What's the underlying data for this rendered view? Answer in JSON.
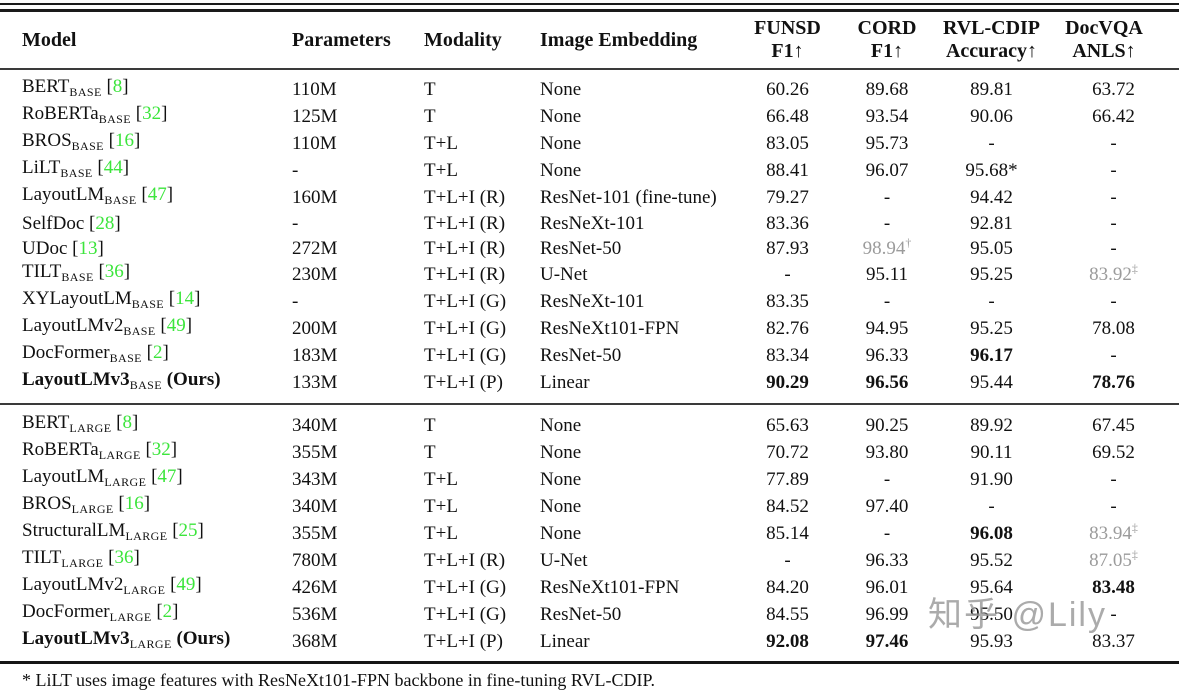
{
  "accent_colors": {
    "citation_green": "#3ce53c",
    "muted_gray": "#9b9b9b"
  },
  "watermark": {
    "text": "知乎 @Lily"
  },
  "table": {
    "headers": [
      {
        "l1": "Model",
        "l2": "",
        "align": "left"
      },
      {
        "l1": "Parameters",
        "l2": "",
        "align": "left"
      },
      {
        "l1": "Modality",
        "l2": "",
        "align": "left"
      },
      {
        "l1": "Image Embedding",
        "l2": "",
        "align": "left"
      },
      {
        "l1": "FUNSD",
        "l2": "F1↑",
        "align": "center"
      },
      {
        "l1": "CORD",
        "l2": "F1↑",
        "align": "center"
      },
      {
        "l1": "RVL-CDIP",
        "l2": "Accuracy↑",
        "align": "center"
      },
      {
        "l1": "DocVQA",
        "l2": "ANLS↑",
        "align": "center"
      }
    ],
    "sections": [
      {
        "rows": [
          {
            "model": {
              "name": "BERT",
              "sub": "BASE",
              "cite": "8",
              "bold": false,
              "suffix": ""
            },
            "params": "110M",
            "modality": "T",
            "embedding": "None",
            "metrics": [
              {
                "v": "60.26"
              },
              {
                "v": "89.68"
              },
              {
                "v": "89.81"
              },
              {
                "v": "63.72"
              }
            ]
          },
          {
            "model": {
              "name": "RoBERTa",
              "sub": "BASE",
              "cite": "32",
              "bold": false,
              "suffix": ""
            },
            "params": "125M",
            "modality": "T",
            "embedding": "None",
            "metrics": [
              {
                "v": "66.48"
              },
              {
                "v": "93.54"
              },
              {
                "v": "90.06"
              },
              {
                "v": "66.42"
              }
            ]
          },
          {
            "model": {
              "name": "BROS",
              "sub": "BASE",
              "cite": "16",
              "bold": false,
              "suffix": ""
            },
            "params": "110M",
            "modality": "T+L",
            "embedding": "None",
            "metrics": [
              {
                "v": "83.05"
              },
              {
                "v": "95.73"
              },
              {
                "v": "-"
              },
              {
                "v": "-"
              }
            ]
          },
          {
            "model": {
              "name": "LiLT",
              "sub": "BASE",
              "cite": "44",
              "bold": false,
              "suffix": ""
            },
            "params": "-",
            "modality": "T+L",
            "embedding": "None",
            "metrics": [
              {
                "v": "88.41"
              },
              {
                "v": "96.07"
              },
              {
                "v": "95.68*"
              },
              {
                "v": "-"
              }
            ]
          },
          {
            "model": {
              "name": "LayoutLM",
              "sub": "BASE",
              "cite": "47",
              "bold": false,
              "suffix": ""
            },
            "params": "160M",
            "modality": "T+L+I (R)",
            "embedding": "ResNet-101 (fine-tune)",
            "metrics": [
              {
                "v": "79.27"
              },
              {
                "v": "-"
              },
              {
                "v": "94.42"
              },
              {
                "v": "-"
              }
            ]
          },
          {
            "model": {
              "name": "SelfDoc",
              "sub": "",
              "cite": "28",
              "bold": false,
              "suffix": ""
            },
            "params": "-",
            "modality": "T+L+I (R)",
            "embedding": "ResNeXt-101",
            "metrics": [
              {
                "v": "83.36"
              },
              {
                "v": "-"
              },
              {
                "v": "92.81"
              },
              {
                "v": "-"
              }
            ]
          },
          {
            "model": {
              "name": "UDoc",
              "sub": "",
              "cite": "13",
              "bold": false,
              "suffix": ""
            },
            "params": "272M",
            "modality": "T+L+I (R)",
            "embedding": "ResNet-50",
            "metrics": [
              {
                "v": "87.93"
              },
              {
                "v": "98.94",
                "g": true,
                "sup": "†"
              },
              {
                "v": "95.05"
              },
              {
                "v": "-"
              }
            ]
          },
          {
            "model": {
              "name": "TILT",
              "sub": "BASE",
              "cite": "36",
              "bold": false,
              "suffix": ""
            },
            "params": "230M",
            "modality": "T+L+I (R)",
            "embedding": "U-Net",
            "metrics": [
              {
                "v": "-"
              },
              {
                "v": "95.11"
              },
              {
                "v": "95.25"
              },
              {
                "v": "83.92",
                "g": true,
                "sup": "‡"
              }
            ]
          },
          {
            "model": {
              "name": "XYLayoutLM",
              "sub": "BASE",
              "cite": "14",
              "bold": false,
              "suffix": ""
            },
            "params": "-",
            "modality": "T+L+I (G)",
            "embedding": "ResNeXt-101",
            "metrics": [
              {
                "v": "83.35"
              },
              {
                "v": "-"
              },
              {
                "v": "-"
              },
              {
                "v": "-"
              }
            ]
          },
          {
            "model": {
              "name": "LayoutLMv2",
              "sub": "BASE",
              "cite": "49",
              "bold": false,
              "suffix": ""
            },
            "params": "200M",
            "modality": "T+L+I (G)",
            "embedding": "ResNeXt101-FPN",
            "metrics": [
              {
                "v": "82.76"
              },
              {
                "v": "94.95"
              },
              {
                "v": "95.25"
              },
              {
                "v": "78.08"
              }
            ]
          },
          {
            "model": {
              "name": "DocFormer",
              "sub": "BASE",
              "cite": "2",
              "bold": false,
              "suffix": ""
            },
            "params": "183M",
            "modality": "T+L+I (G)",
            "embedding": "ResNet-50",
            "metrics": [
              {
                "v": "83.34"
              },
              {
                "v": "96.33"
              },
              {
                "v": "96.17",
                "b": true
              },
              {
                "v": "-"
              }
            ]
          },
          {
            "model": {
              "name": "LayoutLMv3",
              "sub": "BASE",
              "cite": "",
              "bold": true,
              "suffix": " (Ours)"
            },
            "params": "133M",
            "modality": "T+L+I (P)",
            "embedding": "Linear",
            "metrics": [
              {
                "v": "90.29",
                "b": true
              },
              {
                "v": "96.56",
                "b": true
              },
              {
                "v": "95.44"
              },
              {
                "v": "78.76",
                "b": true
              }
            ]
          }
        ]
      },
      {
        "rows": [
          {
            "model": {
              "name": "BERT",
              "sub": "LARGE",
              "cite": "8",
              "bold": false,
              "suffix": ""
            },
            "params": "340M",
            "modality": "T",
            "embedding": "None",
            "metrics": [
              {
                "v": "65.63"
              },
              {
                "v": "90.25"
              },
              {
                "v": "89.92"
              },
              {
                "v": "67.45"
              }
            ]
          },
          {
            "model": {
              "name": "RoBERTa",
              "sub": "LARGE",
              "cite": "32",
              "bold": false,
              "suffix": ""
            },
            "params": "355M",
            "modality": "T",
            "embedding": "None",
            "metrics": [
              {
                "v": "70.72"
              },
              {
                "v": "93.80"
              },
              {
                "v": "90.11"
              },
              {
                "v": "69.52"
              }
            ]
          },
          {
            "model": {
              "name": "LayoutLM",
              "sub": "LARGE",
              "cite": "47",
              "bold": false,
              "suffix": ""
            },
            "params": "343M",
            "modality": "T+L",
            "embedding": "None",
            "metrics": [
              {
                "v": "77.89"
              },
              {
                "v": "-"
              },
              {
                "v": "91.90"
              },
              {
                "v": "-"
              }
            ]
          },
          {
            "model": {
              "name": "BROS",
              "sub": "LARGE",
              "cite": "16",
              "bold": false,
              "suffix": ""
            },
            "params": "340M",
            "modality": "T+L",
            "embedding": "None",
            "metrics": [
              {
                "v": "84.52"
              },
              {
                "v": "97.40"
              },
              {
                "v": "-"
              },
              {
                "v": "-"
              }
            ]
          },
          {
            "model": {
              "name": "StructuralLM",
              "sub": "LARGE",
              "cite": "25",
              "bold": false,
              "suffix": ""
            },
            "params": "355M",
            "modality": "T+L",
            "embedding": "None",
            "metrics": [
              {
                "v": "85.14"
              },
              {
                "v": "-"
              },
              {
                "v": "96.08",
                "b": true
              },
              {
                "v": "83.94",
                "g": true,
                "sup": "‡"
              }
            ]
          },
          {
            "model": {
              "name": "TILT",
              "sub": "LARGE",
              "cite": "36",
              "bold": false,
              "suffix": ""
            },
            "params": "780M",
            "modality": "T+L+I (R)",
            "embedding": "U-Net",
            "metrics": [
              {
                "v": "-"
              },
              {
                "v": "96.33"
              },
              {
                "v": "95.52"
              },
              {
                "v": "87.05",
                "g": true,
                "sup": "‡"
              }
            ]
          },
          {
            "model": {
              "name": "LayoutLMv2",
              "sub": "LARGE",
              "cite": "49",
              "bold": false,
              "suffix": ""
            },
            "params": "426M",
            "modality": "T+L+I (G)",
            "embedding": "ResNeXt101-FPN",
            "metrics": [
              {
                "v": "84.20"
              },
              {
                "v": "96.01"
              },
              {
                "v": "95.64"
              },
              {
                "v": "83.48",
                "b": true
              }
            ]
          },
          {
            "model": {
              "name": "DocFormer",
              "sub": "LARGE",
              "cite": "2",
              "bold": false,
              "suffix": ""
            },
            "params": "536M",
            "modality": "T+L+I (G)",
            "embedding": "ResNet-50",
            "metrics": [
              {
                "v": "84.55"
              },
              {
                "v": "96.99"
              },
              {
                "v": "95.50"
              },
              {
                "v": "-"
              }
            ]
          },
          {
            "model": {
              "name": "LayoutLMv3",
              "sub": "LARGE",
              "cite": "",
              "bold": true,
              "suffix": " (Ours)"
            },
            "params": "368M",
            "modality": "T+L+I (P)",
            "embedding": "Linear",
            "metrics": [
              {
                "v": "92.08",
                "b": true
              },
              {
                "v": "97.46",
                "b": true
              },
              {
                "v": "95.93"
              },
              {
                "v": "83.37"
              }
            ]
          }
        ]
      }
    ],
    "footnote": "* LiLT uses image features with ResNeXt101-FPN backbone in fine-tuning RVL-CDIP."
  }
}
